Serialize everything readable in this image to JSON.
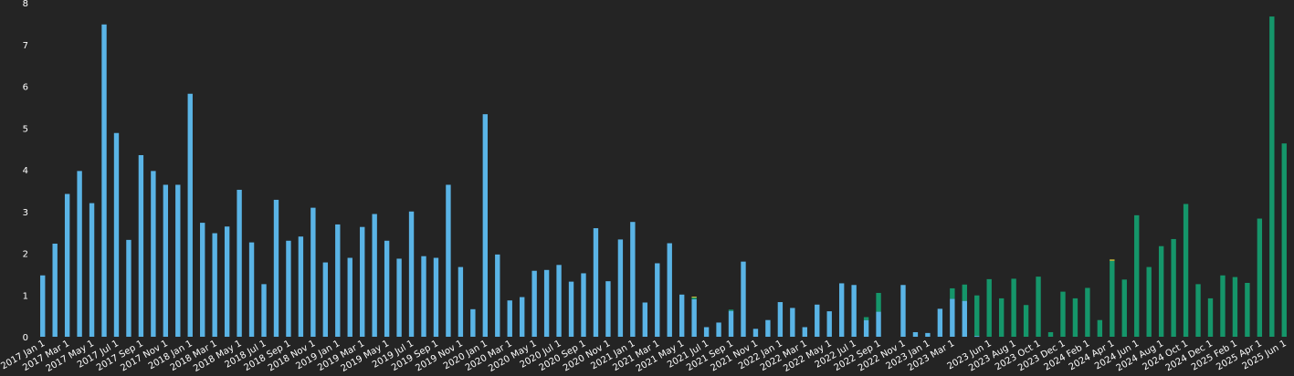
{
  "colors": {
    "background": "#242424",
    "series_blue": "#5AB4E6",
    "series_green": "#15966A",
    "series_yellow": "#D8C53C",
    "text": "#FFFFFF"
  },
  "chart_data": {
    "type": "bar",
    "stacked": true,
    "grid": false,
    "legend": "none",
    "ylim": [
      0,
      8
    ],
    "yticks": [
      0,
      1,
      2,
      3,
      4,
      5,
      6,
      7,
      8
    ],
    "categories": [
      "2017 Jan 1",
      "2017 Feb 1",
      "2017 Mar 1",
      "2017 Apr 1",
      "2017 May 1",
      "2017 Jun 1",
      "2017 Jul 1",
      "2017 Aug 1",
      "2017 Sep 1",
      "2017 Oct 1",
      "2017 Nov 1",
      "2017 Dec 1",
      "2018 Jan 1",
      "2018 Feb 1",
      "2018 Mar 1",
      "2018 Apr 1",
      "2018 May 1",
      "2018 Jun 1",
      "2018 Jul 1",
      "2018 Aug 1",
      "2018 Sep 1",
      "2018 Oct 1",
      "2018 Nov 1",
      "2018 Dec 1",
      "2019 Jan 1",
      "2019 Feb 1",
      "2019 Mar 1",
      "2019 Apr 1",
      "2019 May 1",
      "2019 Jun 1",
      "2019 Jul 1",
      "2019 Aug 1",
      "2019 Sep 1",
      "2019 Oct 1",
      "2019 Nov 1",
      "2019 Dec 1",
      "2020 Jan 1",
      "2020 Feb 1",
      "2020 Mar 1",
      "2020 Apr 1",
      "2020 May 1",
      "2020 Jun 1",
      "2020 Jul 1",
      "2020 Aug 1",
      "2020 Sep 1",
      "2020 Oct 1",
      "2020 Nov 1",
      "2020 Dec 1",
      "2021 Jan 1",
      "2021 Feb 1",
      "2021 Mar 1",
      "2021 Apr 1",
      "2021 May 1",
      "2021 Jun 1",
      "2021 Jul 1",
      "2021 Aug 1",
      "2021 Sep 1",
      "2021 Oct 1",
      "2021 Nov 1",
      "2021 Dec 1",
      "2022 Jan 1",
      "2022 Feb 1",
      "2022 Mar 1",
      "2022 Apr 1",
      "2022 May 1",
      "2022 Jun 1",
      "2022 Jul 1",
      "2022 Aug 1",
      "2022 Sep 1",
      "2022 Oct 1",
      "2022 Nov 1",
      "2022 Dec 1",
      "2023 Jan 1",
      "2023 Feb 1",
      "2023 Mar 1",
      "2023 Apr 1",
      "2023 May 1",
      "2023 Jun 1",
      "2023 Jul 1",
      "2023 Aug 1",
      "2023 Sep 1",
      "2023 Oct 1",
      "2023 Nov 1",
      "2023 Dec 1",
      "2024 Jan 1",
      "2024 Feb 1",
      "2024 Mar 1",
      "2024 Apr 1",
      "2024 May 1",
      "2024 Jun 1",
      "2024 Jul 1",
      "2024 Aug 1",
      "2024 Sep 1",
      "2024 Oct 1",
      "2024 Nov 1",
      "2024 Dec 1",
      "2025 Jan 1",
      "2025 Feb 1",
      "2025 Mar 1",
      "2025 Apr 1",
      "2025 May 1",
      "2025 Jun 1"
    ],
    "xtick_labels": [
      "2017 Jan 1",
      "2017 Mar 1",
      "2017 May 1",
      "2017 Jul 1",
      "2017 Sep 1",
      "2017 Nov 1",
      "2018 Jan 1",
      "2018 Mar 1",
      "2018 May 1",
      "2018 Jul 1",
      "2018 Sep 1",
      "2018 Nov 1",
      "2019 Jan 1",
      "2019 Mar 1",
      "2019 May 1",
      "2019 Jul 1",
      "2019 Sep 1",
      "2019 Nov 1",
      "2020 Jan 1",
      "2020 Mar 1",
      "2020 May 1",
      "2020 Jul 1",
      "2020 Sep 1",
      "2020 Nov 1",
      "2021 Jan 1",
      "2021 Mar 1",
      "2021 May 1",
      "2021 Jul 1",
      "2021 Sep 1",
      "2021 Nov 1",
      "2022 Jan 1",
      "2022 Mar 1",
      "2022 May 1",
      "2022 Jul 1",
      "2022 Sep 1",
      "2022 Nov 1",
      "2023 Jan 1",
      "2023 Mar 1",
      "2023 Jun 1",
      "2023 Aug 1",
      "2023 Oct 1",
      "2023 Dec 1",
      "2024 Feb 1",
      "2024 Apr 1",
      "2024 Jun 1",
      "2024 Aug 1",
      "2024 Oct 1",
      "2024 Dec 1",
      "2025 Feb 1",
      "2025 Apr 1",
      "2025 Jun 1"
    ],
    "series": [
      {
        "color": "#5AB4E6",
        "values": [
          1.47,
          2.23,
          3.42,
          3.97,
          3.2,
          7.48,
          4.88,
          2.32,
          4.35,
          3.97,
          3.64,
          3.64,
          5.82,
          2.73,
          2.48,
          2.64,
          3.52,
          2.26,
          1.26,
          3.28,
          2.3,
          2.4,
          3.09,
          1.78,
          2.69,
          1.89,
          2.63,
          2.94,
          2.3,
          1.87,
          3.0,
          1.93,
          1.89,
          3.64,
          1.67,
          0.66,
          5.33,
          1.97,
          0.87,
          0.95,
          1.58,
          1.6,
          1.72,
          1.32,
          1.52,
          2.6,
          1.33,
          2.33,
          2.75,
          0.82,
          1.76,
          2.24,
          1.01,
          0.9,
          0.23,
          0.34,
          0.62,
          1.8,
          0.19,
          0.4,
          0.83,
          0.69,
          0.23,
          0.77,
          0.61,
          1.28,
          1.24,
          0.4,
          0.6,
          0.0,
          1.24,
          0.11,
          0.09,
          0.67,
          0.91,
          0.86,
          0.02,
          0.0,
          0.0,
          0.0,
          0.0,
          0.0,
          0.0,
          0.0,
          0.0,
          0.0,
          0.0,
          0.0,
          0.0,
          0.0,
          0.0,
          0.0,
          0.0,
          0.0,
          0.0,
          0.0,
          0.0,
          0.0,
          0.0,
          0.0,
          0.0,
          0.0
        ]
      },
      {
        "color": "#15966A",
        "values": [
          0,
          0,
          0,
          0,
          0,
          0,
          0,
          0,
          0,
          0,
          0,
          0,
          0,
          0,
          0,
          0,
          0,
          0,
          0,
          0,
          0,
          0,
          0,
          0,
          0,
          0,
          0,
          0,
          0,
          0,
          0,
          0,
          0,
          0,
          0,
          0,
          0,
          0,
          0,
          0,
          0,
          0,
          0,
          0,
          0,
          0,
          0,
          0,
          0,
          0,
          0,
          0,
          0,
          0.04,
          0,
          0,
          0.03,
          0,
          0,
          0,
          0,
          0,
          0,
          0,
          0,
          0,
          0,
          0.07,
          0.45,
          0,
          0,
          0,
          0,
          0,
          0.25,
          0.39,
          0.97,
          1.38,
          0.92,
          1.39,
          0.76,
          1.44,
          0.11,
          1.08,
          0.92,
          1.17,
          0.4,
          1.82,
          1.37,
          2.91,
          1.67,
          2.17,
          2.34,
          3.18,
          1.26,
          0.92,
          1.47,
          1.43,
          1.29,
          2.83,
          7.67,
          4.63
        ]
      },
      {
        "color": "#D8C53C",
        "values": [
          0,
          0,
          0,
          0,
          0,
          0,
          0,
          0,
          0,
          0,
          0,
          0,
          0,
          0,
          0,
          0,
          0,
          0,
          0,
          0,
          0,
          0,
          0,
          0,
          0,
          0,
          0,
          0,
          0,
          0,
          0,
          0,
          0,
          0,
          0,
          0,
          0,
          0,
          0,
          0,
          0,
          0,
          0,
          0,
          0,
          0,
          0,
          0,
          0,
          0,
          0,
          0,
          0,
          0.02,
          0,
          0,
          0,
          0,
          0,
          0,
          0,
          0,
          0,
          0,
          0,
          0,
          0,
          0,
          0,
          0,
          0,
          0,
          0,
          0,
          0,
          0,
          0,
          0,
          0,
          0,
          0,
          0,
          0,
          0,
          0,
          0,
          0,
          0.03,
          0,
          0,
          0,
          0,
          0,
          0,
          0,
          0,
          0,
          0,
          0,
          0,
          0,
          0
        ]
      }
    ]
  }
}
